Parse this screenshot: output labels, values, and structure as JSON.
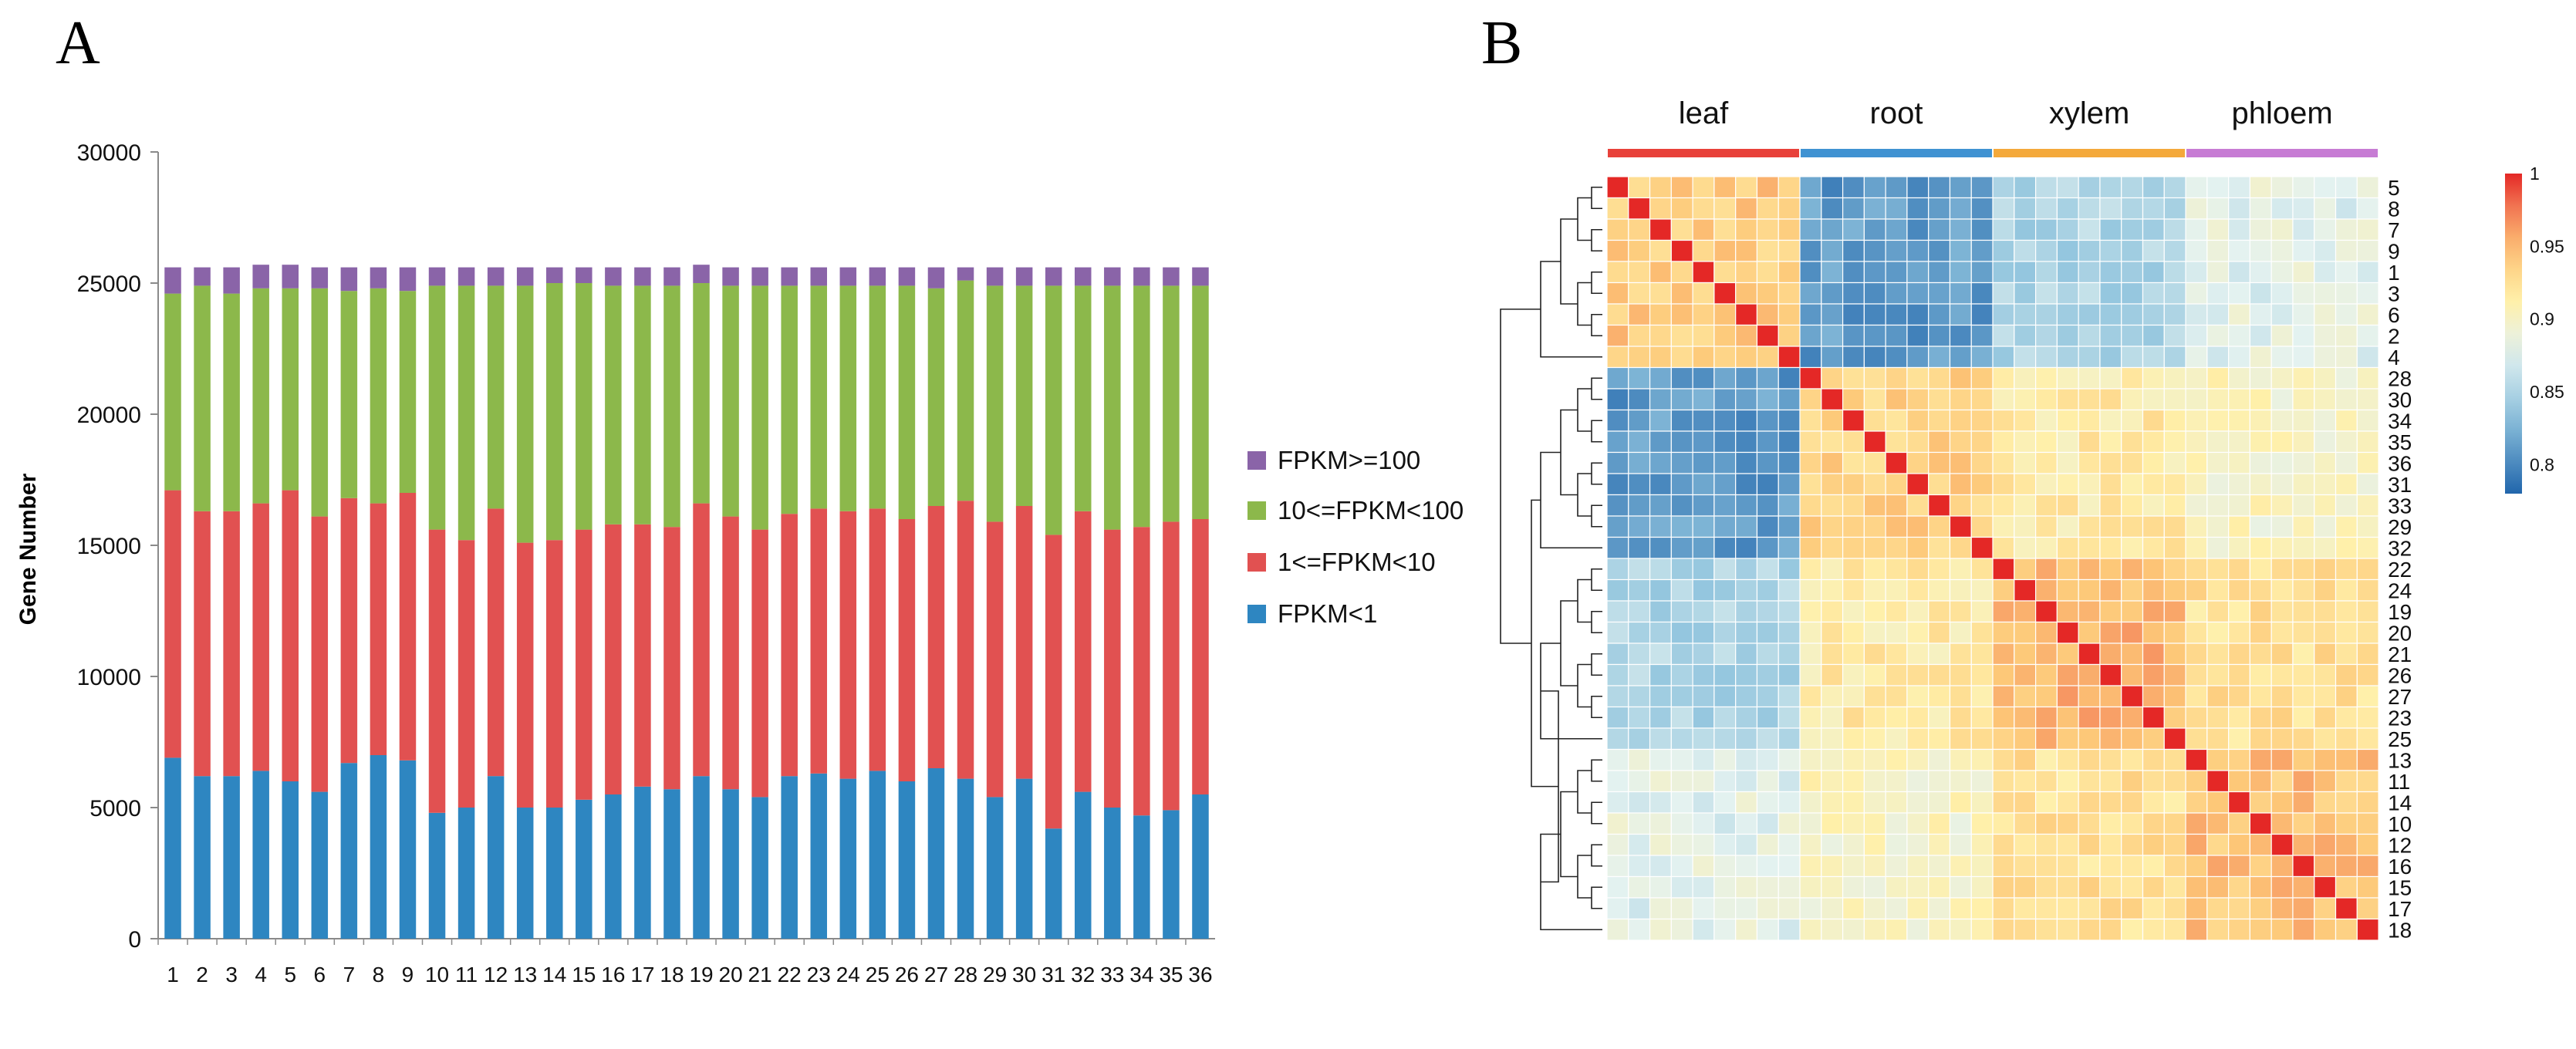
{
  "colors": {
    "fpkm_lt1": "#2E86C1",
    "fpkm_1_10": "#E15151",
    "fpkm_10_100": "#8CB84B",
    "fpkm_ge100": "#8A64A8",
    "leaf": "#E8413A",
    "root": "#3F92D2",
    "xylem": "#F4A93B",
    "phloem": "#C77CD4",
    "axis": "#8a8a8a"
  },
  "chart_data": [
    {
      "panel_label": "A",
      "type": "bar",
      "stacked": true,
      "title": "",
      "xlabel": "",
      "ylabel": "Gene Number",
      "ylim": [
        0,
        30000
      ],
      "yticks": [
        "0",
        "5000",
        "10000",
        "15000",
        "20000",
        "25000",
        "30000"
      ],
      "categories": [
        "1",
        "2",
        "3",
        "4",
        "5",
        "6",
        "7",
        "8",
        "9",
        "10",
        "11",
        "12",
        "13",
        "14",
        "15",
        "16",
        "17",
        "18",
        "19",
        "20",
        "21",
        "22",
        "23",
        "24",
        "25",
        "26",
        "27",
        "28",
        "29",
        "30",
        "31",
        "32",
        "33",
        "34",
        "35",
        "36"
      ],
      "series": [
        {
          "name": "FPKM<1",
          "values": [
            6900,
            6200,
            6200,
            6400,
            6000,
            5600,
            6700,
            7000,
            6800,
            4800,
            5000,
            6200,
            5000,
            5000,
            5300,
            5500,
            5800,
            5700,
            6200,
            5700,
            5400,
            6200,
            6300,
            6100,
            6400,
            6000,
            6500,
            6100,
            5400,
            6100,
            4200,
            5600,
            5000,
            4700,
            4900,
            5500
          ]
        },
        {
          "name": "1<=FPKM<10",
          "values": [
            10200,
            10100,
            10100,
            10200,
            11100,
            10500,
            10100,
            9600,
            10200,
            10800,
            10200,
            10200,
            10100,
            10200,
            10300,
            10300,
            10000,
            10000,
            10400,
            10400,
            10200,
            10000,
            10100,
            10200,
            10000,
            10000,
            10000,
            10600,
            10500,
            10400,
            11200,
            10700,
            10600,
            11000,
            11000,
            10500
          ]
        },
        {
          "name": "10<=FPKM<100",
          "values": [
            7500,
            8600,
            8300,
            8200,
            7700,
            8700,
            7900,
            8200,
            7700,
            9300,
            9700,
            8500,
            9800,
            9800,
            9400,
            9100,
            9100,
            9200,
            8400,
            8800,
            9300,
            8700,
            8500,
            8600,
            8500,
            8900,
            8300,
            8400,
            9000,
            8400,
            9500,
            8600,
            9300,
            9200,
            9000,
            8900
          ]
        },
        {
          "name": "FPKM>=100",
          "values": [
            1000,
            700,
            1000,
            900,
            900,
            800,
            900,
            800,
            900,
            700,
            700,
            700,
            700,
            600,
            600,
            700,
            700,
            700,
            700,
            700,
            700,
            700,
            700,
            700,
            700,
            700,
            800,
            500,
            700,
            700,
            700,
            700,
            700,
            700,
            700,
            700
          ]
        }
      ],
      "legend": {
        "position": "right",
        "order": [
          "FPKM>=100",
          "10<=FPKM<100",
          "1<=FPKM<10",
          "FPKM<1"
        ]
      }
    },
    {
      "panel_label": "B",
      "type": "heatmap",
      "title": "",
      "groups": [
        "leaf",
        "root",
        "xylem",
        "phloem"
      ],
      "row_labels": [
        "5",
        "8",
        "7",
        "9",
        "1",
        "3",
        "6",
        "2",
        "4",
        "28",
        "30",
        "34",
        "35",
        "36",
        "31",
        "33",
        "29",
        "32",
        "22",
        "24",
        "19",
        "20",
        "21",
        "26",
        "27",
        "23",
        "25",
        "13",
        "11",
        "14",
        "10",
        "12",
        "16",
        "15",
        "17",
        "18"
      ],
      "colorbar": {
        "min": 0.78,
        "max": 1,
        "ticks": [
          "1",
          "0.95",
          "0.9",
          "0.85",
          "0.8"
        ]
      },
      "cluster_blocks": [
        {
          "group": "leaf",
          "rows": 9,
          "within": 0.94,
          "off_diag": {
            "root": 0.81,
            "xylem": 0.85,
            "phloem": 0.88
          }
        },
        {
          "group": "root",
          "rows": 9,
          "within": 0.935,
          "off_diag": {
            "xylem": 0.915,
            "phloem": 0.9
          }
        },
        {
          "group": "xylem",
          "rows": 9,
          "within": 0.95,
          "off_diag": {
            "phloem": 0.925
          }
        },
        {
          "group": "phloem",
          "rows": 9,
          "within": 0.945,
          "off_diag": {}
        }
      ]
    }
  ]
}
